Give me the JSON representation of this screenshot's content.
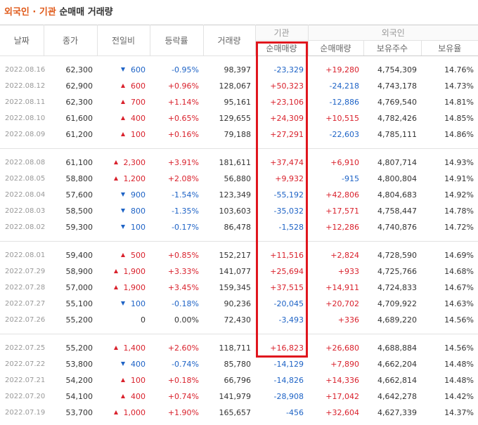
{
  "header": {
    "title_accent": "외국인 · 기관",
    "title_rest": "순매매 거래량"
  },
  "table": {
    "columns": [
      "날짜",
      "종가",
      "전일비",
      "등락률",
      "거래량"
    ],
    "group_inst": "기관",
    "group_foreign": "외국인",
    "subcolumns": [
      "순매매량",
      "순매매량",
      "보유주수",
      "보유율"
    ],
    "groups": [
      {
        "rows": [
          [
            "2022.08.16",
            "62,300",
            "600",
            "-0.95%",
            "98,397",
            "-23,329",
            "+19,280",
            "4,754,309",
            "14.76%"
          ],
          [
            "2022.08.12",
            "62,900",
            "600",
            "+0.96%",
            "128,067",
            "+50,323",
            "-24,218",
            "4,743,178",
            "14.73%"
          ],
          [
            "2022.08.11",
            "62,300",
            "700",
            "+1.14%",
            "95,161",
            "+23,106",
            "-12,886",
            "4,769,540",
            "14.81%"
          ],
          [
            "2022.08.10",
            "61,600",
            "400",
            "+0.65%",
            "129,655",
            "+24,309",
            "+10,515",
            "4,782,426",
            "14.85%"
          ],
          [
            "2022.08.09",
            "61,200",
            "100",
            "+0.16%",
            "79,188",
            "+27,291",
            "-22,603",
            "4,785,111",
            "14.86%"
          ]
        ]
      },
      {
        "rows": [
          [
            "2022.08.08",
            "61,100",
            "2,300",
            "+3.91%",
            "181,611",
            "+37,474",
            "+6,910",
            "4,807,714",
            "14.93%"
          ],
          [
            "2022.08.05",
            "58,800",
            "1,200",
            "+2.08%",
            "56,880",
            "+9,932",
            "-915",
            "4,800,804",
            "14.91%"
          ],
          [
            "2022.08.04",
            "57,600",
            "900",
            "-1.54%",
            "123,349",
            "-55,192",
            "+42,806",
            "4,804,683",
            "14.92%"
          ],
          [
            "2022.08.03",
            "58,500",
            "800",
            "-1.35%",
            "103,603",
            "-35,032",
            "+17,571",
            "4,758,447",
            "14.78%"
          ],
          [
            "2022.08.02",
            "59,300",
            "100",
            "-0.17%",
            "86,478",
            "-1,528",
            "+12,286",
            "4,740,876",
            "14.72%"
          ]
        ]
      },
      {
        "rows": [
          [
            "2022.08.01",
            "59,400",
            "500",
            "+0.85%",
            "152,217",
            "+11,516",
            "+2,824",
            "4,728,590",
            "14.69%"
          ],
          [
            "2022.07.29",
            "58,900",
            "1,900",
            "+3.33%",
            "141,077",
            "+25,694",
            "+933",
            "4,725,766",
            "14.68%"
          ],
          [
            "2022.07.28",
            "57,000",
            "1,900",
            "+3.45%",
            "159,345",
            "+37,515",
            "+14,911",
            "4,724,833",
            "14.67%"
          ],
          [
            "2022.07.27",
            "55,100",
            "100",
            "-0.18%",
            "90,236",
            "-20,045",
            "+20,702",
            "4,709,922",
            "14.63%"
          ],
          [
            "2022.07.26",
            "55,200",
            "0",
            "0.00%",
            "72,430",
            "-3,493",
            "+336",
            "4,689,220",
            "14.56%"
          ]
        ]
      },
      {
        "rows": [
          [
            "2022.07.25",
            "55,200",
            "1,400",
            "+2.60%",
            "118,711",
            "+16,823",
            "+26,680",
            "4,688,884",
            "14.56%"
          ],
          [
            "2022.07.22",
            "53,800",
            "400",
            "-0.74%",
            "85,780",
            "-14,129",
            "+7,890",
            "4,662,204",
            "14.48%"
          ],
          [
            "2022.07.21",
            "54,200",
            "100",
            "+0.18%",
            "66,796",
            "-14,826",
            "+14,336",
            "4,662,814",
            "14.48%"
          ],
          [
            "2022.07.20",
            "54,100",
            "400",
            "+0.74%",
            "141,979",
            "-28,908",
            "+17,042",
            "4,642,278",
            "14.42%"
          ],
          [
            "2022.07.19",
            "53,700",
            "1,000",
            "+1.90%",
            "165,657",
            "-456",
            "+32,604",
            "4,627,339",
            "14.37%"
          ]
        ]
      }
    ]
  }
}
